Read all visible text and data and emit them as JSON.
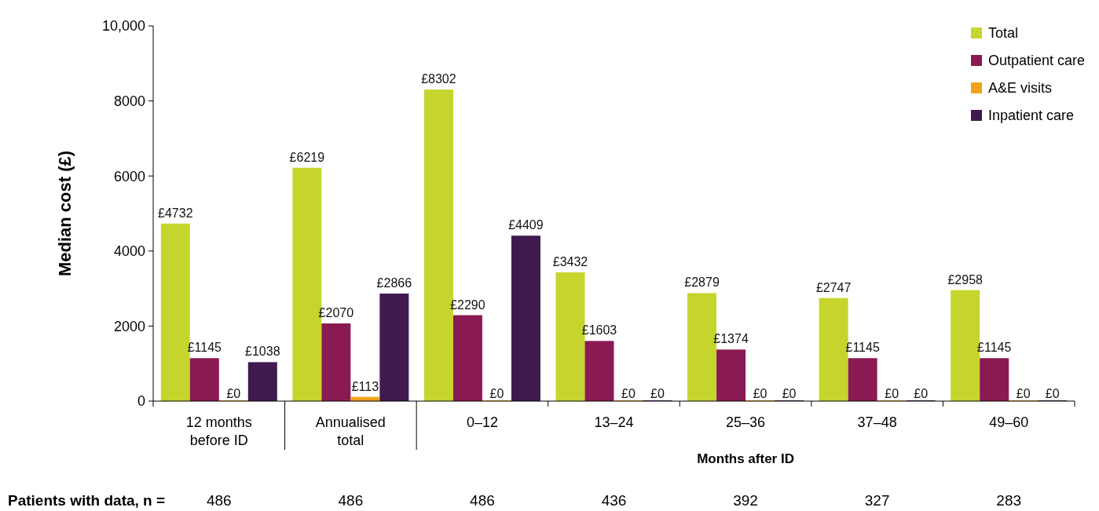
{
  "chart_data": {
    "type": "bar",
    "ylabel": "Median cost (£)",
    "xlabel": "Months after ID",
    "categories": [
      "12 months before ID",
      "Annualised total",
      "0–12",
      "13–24",
      "25–36",
      "37–48",
      "49–60"
    ],
    "series": [
      {
        "name": "Total",
        "color": "#c5d52d",
        "values": [
          4732,
          6219,
          8302,
          3432,
          2879,
          2747,
          2958
        ],
        "value_labels": [
          "£4732",
          "£6219",
          "£8302",
          "£3432",
          "£2879",
          "£2747",
          "£2958"
        ]
      },
      {
        "name": "Outpatient care",
        "color": "#8a1a52",
        "values": [
          1145,
          2070,
          2290,
          1603,
          1374,
          1145,
          1145
        ],
        "value_labels": [
          "£1145",
          "£2070",
          "£2290",
          "£1603",
          "£1374",
          "£1145",
          "£1145"
        ]
      },
      {
        "name": "A&E visits",
        "color": "#f2a31b",
        "values": [
          0,
          113,
          0,
          0,
          0,
          0,
          0
        ],
        "value_labels": [
          "£0",
          "£113",
          "£0",
          "£0",
          "£0",
          "£0",
          "£0"
        ]
      },
      {
        "name": "Inpatient care",
        "color": "#3e1a4f",
        "values": [
          1038,
          2866,
          4409,
          0,
          0,
          0,
          0
        ],
        "value_labels": [
          "£1038",
          "£2866",
          "£4409",
          "£0",
          "£0",
          "£0",
          "£0"
        ]
      }
    ],
    "ylim": [
      0,
      10000
    ],
    "yticks": [
      0,
      2000,
      4000,
      6000,
      8000,
      {
        "value": 10000,
        "label": "10,000"
      }
    ],
    "legend": "top right",
    "annotations": [
      "Patients with data, n =",
      "486",
      "486",
      "486",
      "436",
      "392",
      "327",
      "283"
    ]
  }
}
